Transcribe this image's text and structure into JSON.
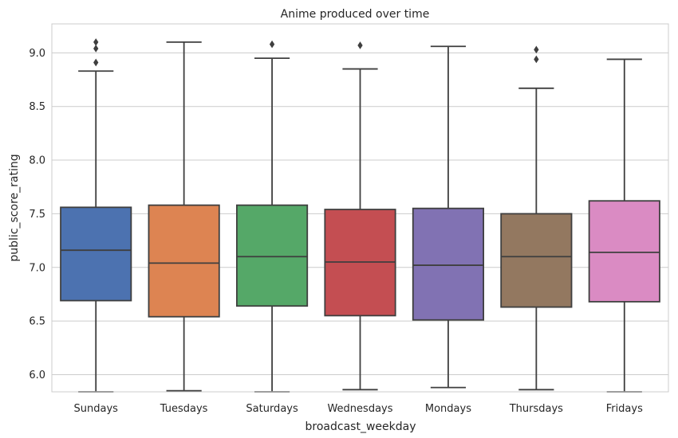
{
  "chart_data": {
    "type": "boxplot",
    "title": "Anime produced over time",
    "xlabel": "broadcast_weekday",
    "ylabel": "public_score_rating",
    "ylim": [
      5.84,
      9.27
    ],
    "yticks": [
      6.0,
      6.5,
      7.0,
      7.5,
      8.0,
      8.5,
      9.0
    ],
    "ytick_labels": [
      "6.0",
      "6.5",
      "7.0",
      "7.5",
      "8.0",
      "8.5",
      "9.0"
    ],
    "grid": true,
    "categories": [
      "Sundays",
      "Tuesdays",
      "Saturdays",
      "Wednesdays",
      "Mondays",
      "Thursdays",
      "Fridays"
    ],
    "boxes": [
      {
        "name": "Sundays",
        "whisker_low": 5.84,
        "q1": 6.69,
        "median": 7.16,
        "q3": 7.56,
        "whisker_high": 8.83,
        "outliers": [
          8.91,
          9.04,
          9.1
        ],
        "color": "#4c72b0"
      },
      {
        "name": "Tuesdays",
        "whisker_low": 5.85,
        "q1": 6.54,
        "median": 7.04,
        "q3": 7.58,
        "whisker_high": 9.1,
        "outliers": [],
        "color": "#dd8452"
      },
      {
        "name": "Saturdays",
        "whisker_low": 5.84,
        "q1": 6.64,
        "median": 7.1,
        "q3": 7.58,
        "whisker_high": 8.95,
        "outliers": [
          9.08
        ],
        "color": "#55a868"
      },
      {
        "name": "Wednesdays",
        "whisker_low": 5.86,
        "q1": 6.55,
        "median": 7.05,
        "q3": 7.54,
        "whisker_high": 8.85,
        "outliers": [
          9.07
        ],
        "color": "#c44e52"
      },
      {
        "name": "Mondays",
        "whisker_low": 5.88,
        "q1": 6.51,
        "median": 7.02,
        "q3": 7.55,
        "whisker_high": 9.06,
        "outliers": [],
        "color": "#8172b3"
      },
      {
        "name": "Thursdays",
        "whisker_low": 5.86,
        "q1": 6.63,
        "median": 7.1,
        "q3": 7.5,
        "whisker_high": 8.67,
        "outliers": [
          8.94,
          9.03
        ],
        "color": "#937860"
      },
      {
        "name": "Fridays",
        "whisker_low": 5.84,
        "q1": 6.68,
        "median": 7.14,
        "q3": 7.62,
        "whisker_high": 8.94,
        "outliers": [],
        "color": "#da8bc3"
      }
    ],
    "line_color": "#3f3f3f",
    "grid_color": "#cccccc",
    "spine_color": "#cccccc"
  }
}
